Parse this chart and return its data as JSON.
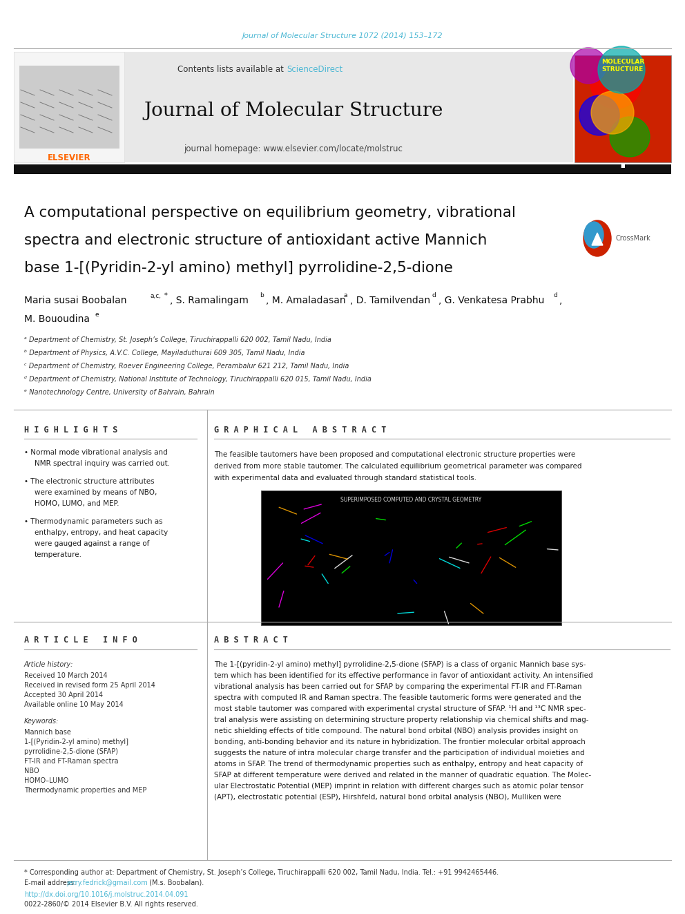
{
  "page_width": 9.92,
  "page_height": 13.23,
  "dpi": 100,
  "background_color": "#ffffff",
  "journal_citation": "Journal of Molecular Structure 1072 (2014) 153–172",
  "journal_citation_color": "#4db8d4",
  "journal_citation_fontsize": 8,
  "header_bg_color": "#e8e8e8",
  "header_sciencedirect_color": "#4db8d4",
  "header_journal_fontsize": 20,
  "header_small_fontsize": 8.5,
  "paper_title_line1": "A computational perspective on equilibrium geometry, vibrational",
  "paper_title_line2": "spectra and electronic structure of antioxidant active Mannich",
  "paper_title_line3": "base 1-[(Pyridin-2-yl amino) methyl] pyrrolidine-2,5-dione",
  "title_fontsize": 15.5,
  "authors_fontsize": 10,
  "affil_fontsize": 7,
  "affil_a": "ᵃ Department of Chemistry, St. Joseph’s College, Tiruchirappalli 620 002, Tamil Nadu, India",
  "affil_b": "ᵇ Department of Physics, A.V.C. College, Mayiladuthurai 609 305, Tamil Nadu, India",
  "affil_c": "ᶜ Department of Chemistry, Roever Engineering College, Perambalur 621 212, Tamil Nadu, India",
  "affil_d": "ᵈ Department of Chemistry, National Institute of Technology, Tiruchirappalli 620 015, Tamil Nadu, India",
  "affil_e": "ᵉ Nanotechnology Centre, University of Bahrain, Bahrain",
  "highlights_title": "H I G H L I G H T S",
  "highlights_title_fontsize": 8.5,
  "highlights": [
    "Normal mode vibrational analysis and\nNMR spectral inquiry was carried out.",
    "The electronic structure attributes\nwere examined by means of NBO,\nHOMO, LUMO, and MEP.",
    "Thermodynamic parameters such as\nenthalpy, entropy, and heat capacity\nwere gauged against a range of\ntemperature."
  ],
  "highlights_fontsize": 7.5,
  "graphical_title": "G R A P H I C A L   A B S T R A C T",
  "graphical_title_fontsize": 8.5,
  "graphical_text_line1": "The feasible tautomers have been proposed and computational electronic structure properties were",
  "graphical_text_line2": "derived from more stable tautomer. The calculated equilibrium geometrical parameter was compared",
  "graphical_text_line3": "with experimental data and evaluated through standard statistical tools.",
  "graphical_text_fontsize": 7.5,
  "graphical_img_label": "SUPERIMPOSED COMPUTED AND CRYSTAL GEOMETRY",
  "graphical_img_bg": "#000000",
  "article_info_title": "A R T I C L E   I N F O",
  "article_info_title_fontsize": 8.5,
  "article_history_title": "Article history:",
  "article_history": [
    "Received 10 March 2014",
    "Received in revised form 25 April 2014",
    "Accepted 30 April 2014",
    "Available online 10 May 2014"
  ],
  "keywords_title": "Keywords:",
  "keywords": [
    "Mannich base",
    "1-[(Pyridin-2-yl amino) methyl]",
    "pyrrolidine-2,5-dione (SFAP)",
    "FT-IR and FT-Raman spectra",
    "NBO",
    "HOMO–LUMO",
    "Thermodynamic properties and MEP"
  ],
  "article_info_fontsize": 7,
  "abstract_title": "A B S T R A C T",
  "abstract_title_fontsize": 8.5,
  "abstract_lines": [
    "The 1-[(pyridin-2-yl amino) methyl] pyrrolidine-2,5-dione (SFAP) is a class of organic Mannich base sys-",
    "tem which has been identified for its effective performance in favor of antioxidant activity. An intensified",
    "vibrational analysis has been carried out for SFAP by comparing the experimental FT-IR and FT-Raman",
    "spectra with computed IR and Raman spectra. The feasible tautomeric forms were generated and the",
    "most stable tautomer was compared with experimental crystal structure of SFAP. ¹H and ¹³C NMR spec-",
    "tral analysis were assisting on determining structure property relationship via chemical shifts and mag-",
    "netic shielding effects of title compound. The natural bond orbital (NBO) analysis provides insight on",
    "bonding, anti-bonding behavior and its nature in hybridization. The frontier molecular orbital approach",
    "suggests the nature of intra molecular charge transfer and the participation of individual moieties and",
    "atoms in SFAP. The trend of thermodynamic properties such as enthalpy, entropy and heat capacity of",
    "SFAP at different temperature were derived and related in the manner of quadratic equation. The Molec-",
    "ular Electrostatic Potential (MEP) imprint in relation with different charges such as atomic polar tensor",
    "(APT), electrostatic potential (ESP), Hirshfeld, natural bond orbital analysis (NBO), Mulliken were"
  ],
  "abstract_fontsize": 7.5,
  "footnote_star": "* Corresponding author at: Department of Chemistry, St. Joseph’s College, Tiruchirappalli 620 002, Tamil Nadu, India. Tel.: +91 9942465446.",
  "footnote_email_label": "E-mail address: ",
  "footnote_email": "jerry.fedrick@gmail.com",
  "footnote_email_color": "#4db8d4",
  "footnote_email_end": " (M.s. Boobalan).",
  "footnote_fontsize": 7,
  "doi_text": "http://dx.doi.org/10.1016/j.molstruc.2014.04.091",
  "doi_color": "#4db8d4",
  "doi_fontsize": 7,
  "issn_text": "0022-2860/© 2014 Elsevier B.V. All rights reserved.",
  "issn_fontsize": 7,
  "divider_color": "#aaaaaa",
  "thick_bar_color": "#111111"
}
